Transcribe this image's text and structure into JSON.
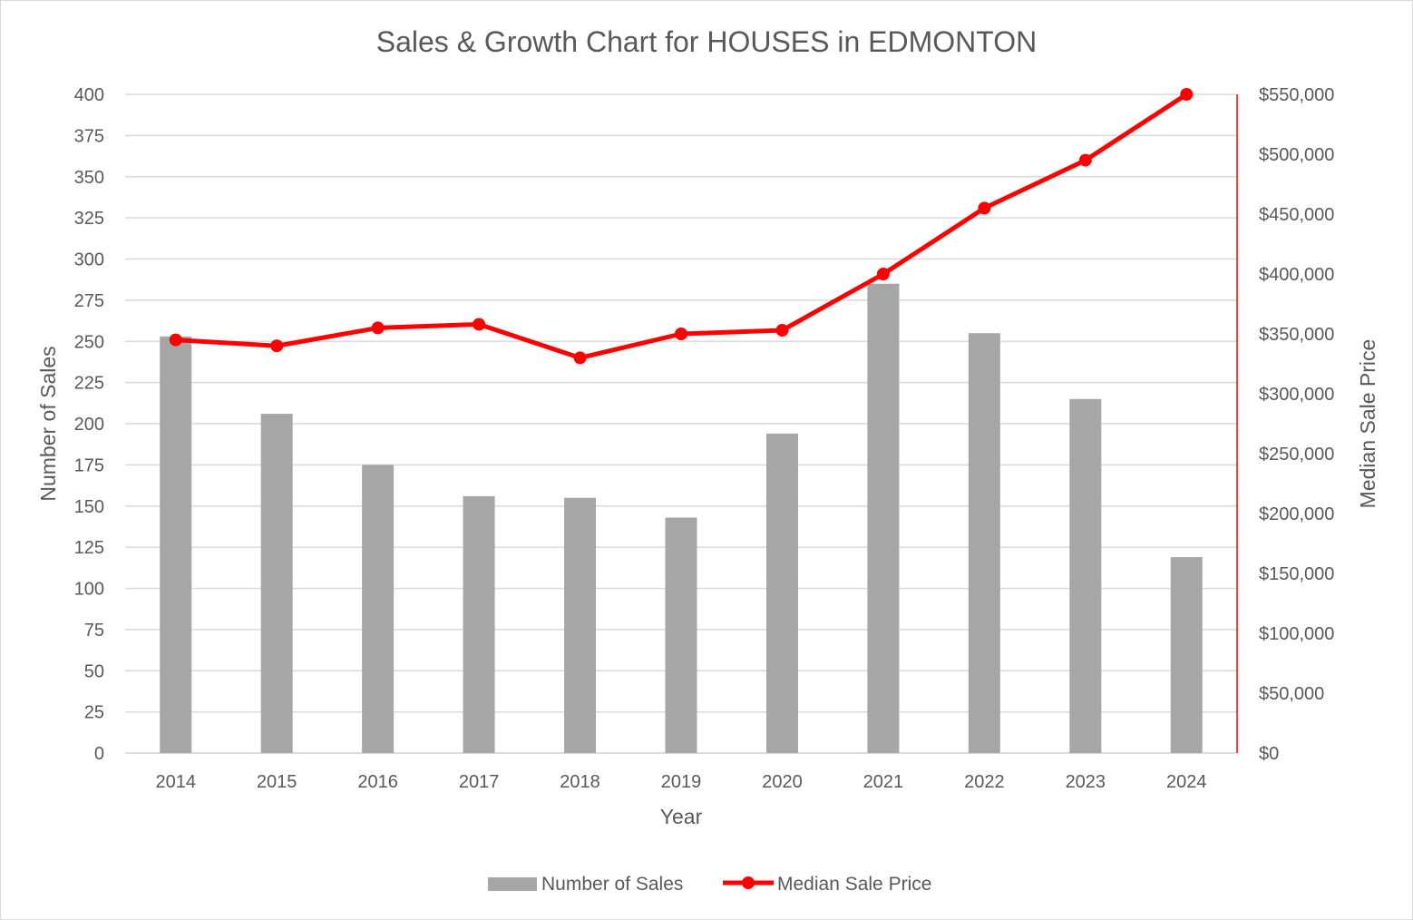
{
  "chart_data": {
    "type": "bar",
    "title": "Sales & Growth Chart for HOUSES in EDMONTON",
    "xlabel": "Year",
    "ylabel": "Number of Sales",
    "y2label": "Median Sale Price",
    "categories": [
      "2014",
      "2015",
      "2016",
      "2017",
      "2018",
      "2019",
      "2020",
      "2021",
      "2022",
      "2023",
      "2024"
    ],
    "ylim": [
      0,
      400
    ],
    "y_ticks": [
      0,
      25,
      50,
      75,
      100,
      125,
      150,
      175,
      200,
      225,
      250,
      275,
      300,
      325,
      350,
      375,
      400
    ],
    "y2lim": [
      0,
      550000
    ],
    "y2_ticks": [
      0,
      50000,
      100000,
      150000,
      200000,
      250000,
      300000,
      350000,
      400000,
      450000,
      500000,
      550000
    ],
    "y2_tick_labels": [
      "$0",
      "$50,000",
      "$100,000",
      "$150,000",
      "$200,000",
      "$250,000",
      "$300,000",
      "$350,000",
      "$400,000",
      "$450,000",
      "$500,000",
      "$550,000"
    ],
    "grid": true,
    "legend_position": "bottom",
    "series": [
      {
        "name": "Number of Sales",
        "type": "bar",
        "axis": "left",
        "color": "#a6a6a6",
        "values": [
          253,
          206,
          175,
          156,
          155,
          143,
          194,
          285,
          255,
          215,
          119
        ]
      },
      {
        "name": "Median Sale Price",
        "type": "line",
        "axis": "right",
        "color": "#ff0000",
        "values": [
          345000,
          340000,
          355000,
          358000,
          330000,
          350000,
          353000,
          400000,
          455000,
          495000,
          550000
        ]
      }
    ]
  }
}
